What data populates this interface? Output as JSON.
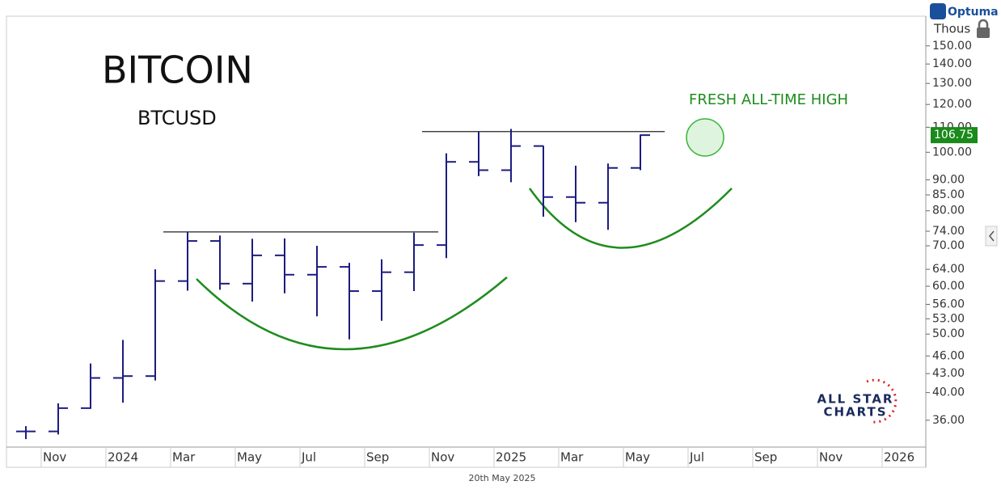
{
  "chart_data": {
    "type": "ohlc",
    "title": "BITCOIN",
    "subtitle": "BTCUSD",
    "annotation": "FRESH ALL-TIME HIGH",
    "date_label": "20th May 2025",
    "y_unit": "Thous",
    "brand": "Optuma",
    "watermark": [
      "ALL STAR",
      "CHARTS"
    ],
    "x": [
      "2023-10",
      "2023-11",
      "2023-12",
      "2024-01",
      "2024-02",
      "2024-03",
      "2024-04",
      "2024-05",
      "2024-06",
      "2024-07",
      "2024-08",
      "2024-09",
      "2024-10",
      "2024-11",
      "2024-12",
      "2025-01",
      "2025-02",
      "2025-03",
      "2025-04",
      "2025-05"
    ],
    "series": [
      {
        "name": "BTCUSD",
        "color": "#1c1c80",
        "open": [
          34.5,
          34.5,
          37.7,
          42.3,
          42.6,
          61.2,
          71.3,
          60.6,
          67.5,
          62.7,
          64.6,
          58.9,
          63.3,
          70.2,
          96.4,
          93.4,
          102.4,
          84.3,
          82.5,
          94.2
        ],
        "high": [
          35.2,
          38.4,
          44.7,
          48.9,
          64.0,
          73.8,
          72.8,
          71.9,
          72.0,
          70.0,
          65.6,
          66.5,
          73.6,
          99.6,
          108.3,
          109.3,
          102.5,
          95.0,
          95.8,
          107.0
        ],
        "low": [
          33.5,
          34.1,
          37.6,
          38.5,
          41.9,
          59.0,
          59.2,
          56.6,
          58.4,
          53.5,
          49.0,
          52.6,
          58.9,
          66.8,
          91.3,
          89.2,
          78.2,
          76.6,
          74.4,
          93.4
        ],
        "close": [
          34.5,
          37.7,
          42.3,
          42.6,
          61.2,
          71.3,
          60.6,
          67.5,
          62.7,
          64.6,
          58.9,
          63.3,
          70.2,
          96.4,
          93.4,
          102.4,
          84.3,
          82.5,
          94.2,
          106.75
        ]
      }
    ],
    "levels": [
      {
        "value": 73.8,
        "x": [
          "2024-03",
          "2024-11"
        ]
      },
      {
        "value": 108.2,
        "x": [
          "2024-11",
          "2025-06"
        ]
      }
    ],
    "log_scale": true,
    "ylim": [
      32.5,
      168
    ],
    "yticks": [
      {
        "value": 36,
        "label": "36.00"
      },
      {
        "value": 40,
        "label": "40.00"
      },
      {
        "value": 43,
        "label": "43.00"
      },
      {
        "value": 46,
        "label": "46.00"
      },
      {
        "value": 50,
        "label": "50.00"
      },
      {
        "value": 53,
        "label": "53.00"
      },
      {
        "value": 56,
        "label": "56.00"
      },
      {
        "value": 60,
        "label": "60.00"
      },
      {
        "value": 64,
        "label": "64.00"
      },
      {
        "value": 70,
        "label": "70.00"
      },
      {
        "value": 74,
        "label": "74.00"
      },
      {
        "value": 80,
        "label": "80.00"
      },
      {
        "value": 85,
        "label": "85.00"
      },
      {
        "value": 90,
        "label": "90.00"
      },
      {
        "value": 100,
        "label": "100.00"
      },
      {
        "value": 110,
        "label": "110.00"
      },
      {
        "value": 120,
        "label": "120.00"
      },
      {
        "value": 130,
        "label": "130.00"
      },
      {
        "value": 140,
        "label": "140.00"
      },
      {
        "value": 150,
        "label": "150.00"
      }
    ],
    "xlim": [
      "2023-10",
      "2026-01"
    ],
    "xticks": [
      {
        "value": "2023-11",
        "label": "Nov"
      },
      {
        "value": "2024-01",
        "label": "2024"
      },
      {
        "value": "2024-03",
        "label": "Mar"
      },
      {
        "value": "2024-05",
        "label": "May"
      },
      {
        "value": "2024-07",
        "label": "Jul"
      },
      {
        "value": "2024-09",
        "label": "Sep"
      },
      {
        "value": "2024-11",
        "label": "Nov"
      },
      {
        "value": "2025-01",
        "label": "2025"
      },
      {
        "value": "2025-03",
        "label": "Mar"
      },
      {
        "value": "2025-05",
        "label": "May"
      },
      {
        "value": "2025-07",
        "label": "Jul"
      },
      {
        "value": "2025-09",
        "label": "Sep"
      },
      {
        "value": "2025-11",
        "label": "Nov"
      },
      {
        "value": "2026-01",
        "label": "2026"
      }
    ]
  }
}
